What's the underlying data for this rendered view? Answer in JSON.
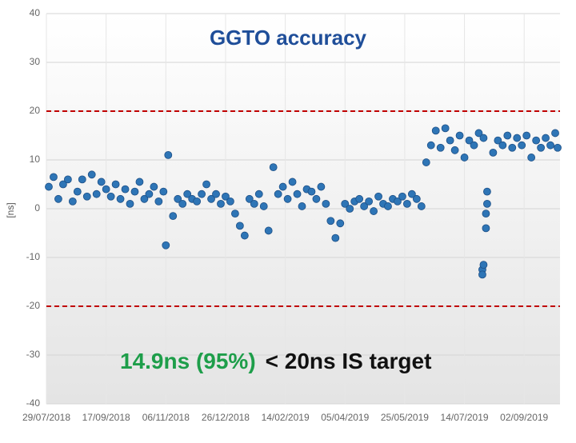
{
  "chart_data": {
    "type": "scatter",
    "title": "GGTO accuracy",
    "y_label": "[ns]",
    "xlim": [
      "29/07/2018",
      "02/10/2019"
    ],
    "xticks": [
      "29/07/2018",
      "17/09/2018",
      "06/11/2018",
      "26/12/2018",
      "14/02/2019",
      "05/04/2019",
      "25/05/2019",
      "14/07/2019",
      "02/09/2019"
    ],
    "ylim": [
      -40,
      40
    ],
    "yticks": [
      -40,
      -30,
      -20,
      -10,
      0,
      10,
      20,
      30,
      40
    ],
    "grid": true,
    "reference_lines": [
      20,
      -20
    ],
    "reference_color": "#c00000",
    "annotations": [
      {
        "text": "14.9ns (95%)",
        "color": "#1e9e4a"
      },
      {
        "text": "< 20ns IS target",
        "color": "#111111"
      }
    ],
    "series": [
      {
        "color": "#2e75b6",
        "x": [
          "31/07/2018",
          "04/08/2018",
          "08/08/2018",
          "12/08/2018",
          "16/08/2018",
          "20/08/2018",
          "24/08/2018",
          "28/08/2018",
          "01/09/2018",
          "05/09/2018",
          "09/09/2018",
          "13/09/2018",
          "17/09/2018",
          "21/09/2018",
          "25/09/2018",
          "29/09/2018",
          "03/10/2018",
          "07/10/2018",
          "11/10/2018",
          "15/10/2018",
          "19/10/2018",
          "23/10/2018",
          "27/10/2018",
          "31/10/2018",
          "04/11/2018",
          "06/11/2018",
          "08/11/2018",
          "12/11/2018",
          "16/11/2018",
          "20/11/2018",
          "24/11/2018",
          "28/11/2018",
          "02/12/2018",
          "06/12/2018",
          "10/12/2018",
          "14/12/2018",
          "18/12/2018",
          "22/12/2018",
          "26/12/2018",
          "30/12/2018",
          "03/01/2019",
          "07/01/2019",
          "11/01/2019",
          "15/01/2019",
          "19/01/2019",
          "23/01/2019",
          "27/01/2019",
          "31/01/2019",
          "04/02/2019",
          "08/02/2019",
          "12/02/2019",
          "16/02/2019",
          "20/02/2019",
          "24/02/2019",
          "28/02/2019",
          "04/03/2019",
          "08/03/2019",
          "12/03/2019",
          "16/03/2019",
          "20/03/2019",
          "24/03/2019",
          "28/03/2019",
          "01/04/2019",
          "05/04/2019",
          "09/04/2019",
          "13/04/2019",
          "17/04/2019",
          "21/04/2019",
          "25/04/2019",
          "29/04/2019",
          "03/05/2019",
          "07/05/2019",
          "11/05/2019",
          "15/05/2019",
          "19/05/2019",
          "23/05/2019",
          "27/05/2019",
          "31/05/2019",
          "04/06/2019",
          "08/06/2019",
          "12/06/2019",
          "16/06/2019",
          "20/06/2019",
          "24/06/2019",
          "28/06/2019",
          "02/07/2019",
          "06/07/2019",
          "10/07/2019",
          "14/07/2019",
          "18/07/2019",
          "22/07/2019",
          "26/07/2019",
          "29/07/2019",
          "29/07/2019",
          "30/07/2019",
          "30/07/2019",
          "01/08/2019",
          "01/08/2019",
          "02/08/2019",
          "02/08/2019",
          "07/08/2019",
          "11/08/2019",
          "15/08/2019",
          "19/08/2019",
          "23/08/2019",
          "27/08/2019",
          "31/08/2019",
          "04/09/2019",
          "08/09/2019",
          "12/09/2019",
          "16/09/2019",
          "20/09/2019",
          "24/09/2019",
          "28/09/2019",
          "30/09/2019"
        ],
        "values": [
          4.5,
          6.5,
          2,
          5,
          6,
          1.5,
          3.5,
          6,
          2.5,
          7,
          3,
          5.5,
          4,
          2.5,
          5,
          2,
          4,
          1,
          3.5,
          5.5,
          2,
          3,
          4.5,
          1.5,
          3.5,
          -7.5,
          11,
          -1.5,
          2,
          1,
          3,
          2,
          1.5,
          3,
          5,
          2,
          3,
          1,
          2.5,
          1.5,
          -1,
          -3.5,
          -5.5,
          2,
          1,
          3,
          0.5,
          -4.5,
          8.5,
          3,
          4.5,
          2,
          5.5,
          3,
          0.5,
          4,
          3.5,
          2,
          4.5,
          1,
          -2.5,
          -6,
          -3,
          1,
          0,
          1.5,
          2,
          0.5,
          1.5,
          -0.5,
          2.5,
          1,
          0.5,
          2,
          1.5,
          2.5,
          1,
          3,
          2,
          0.5,
          9.5,
          13,
          16,
          12.5,
          16.5,
          14,
          12,
          15,
          10.5,
          14,
          13,
          15.5,
          -12.5,
          -13.5,
          -11.5,
          14.5,
          -1,
          -4,
          3.5,
          1,
          11.5,
          14,
          13,
          15,
          12.5,
          14.5,
          13,
          15,
          10.5,
          14,
          12.5,
          14.5,
          13,
          15.5,
          12.5
        ]
      }
    ]
  }
}
